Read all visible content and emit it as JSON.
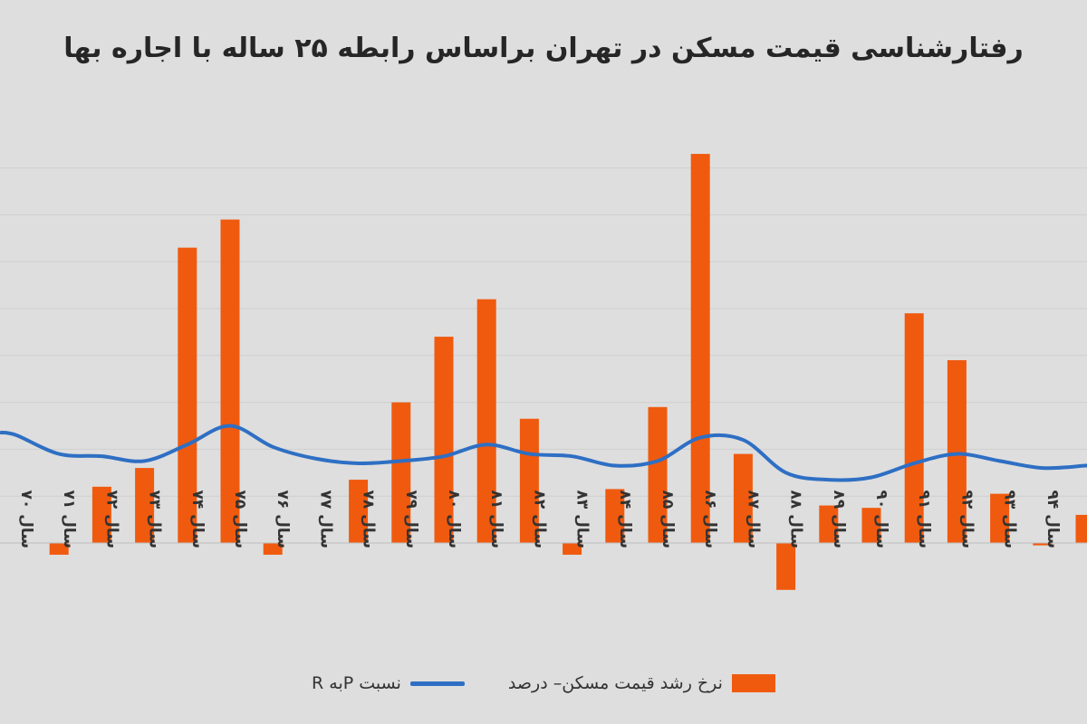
{
  "chart_data": {
    "type": "bar",
    "title": "رفتارشناسی قیمت مسکن در تهران براساس رابطه ۲۵ ساله با اجاره بها",
    "categories": [
      "سال ۷۰",
      "سال ۷۱",
      "سال ۷۲",
      "سال ۷۳",
      "سال ۷۴",
      "سال ۷۵",
      "سال ۷۶",
      "سال ۷۷",
      "سال ۷۸",
      "سال ۷۹",
      "سال ۸۰",
      "سال ۸۱",
      "سال ۸۲",
      "سال ۸۳",
      "سال ۸۴",
      "سال ۸۵",
      "سال ۸۶",
      "سال ۸۷",
      "سال ۸۸",
      "سال ۸۹",
      "سال ۹۰",
      "سال ۹۱",
      "سال ۹۲",
      "سال ۹۳",
      "سال ۹۴",
      "سال ۹۵"
    ],
    "series": [
      {
        "name": "نرخ رشد قیمت مسکن– درصد",
        "type": "bar",
        "color": "#f05a0e",
        "values": [
          0,
          -2.5,
          12,
          16,
          63,
          69,
          -2.5,
          0,
          13.5,
          30,
          44,
          52,
          26.5,
          -2.5,
          11.5,
          29,
          83,
          19,
          -10,
          8,
          7.5,
          49,
          39,
          10.5,
          -0.5,
          6
        ]
      },
      {
        "name": "نسبت  Pبه R",
        "type": "line",
        "color": "#2e6fc4",
        "values": [
          23,
          19,
          18.5,
          17.5,
          21,
          25,
          20.5,
          18,
          17,
          17.5,
          18.5,
          21,
          19,
          18.5,
          16.5,
          17.5,
          22.5,
          22,
          15,
          13.5,
          14,
          17,
          19,
          17.5,
          16,
          16.5
        ]
      }
    ],
    "ylim": [
      -12,
      88
    ],
    "grid": true,
    "legend_position": "bottom"
  }
}
